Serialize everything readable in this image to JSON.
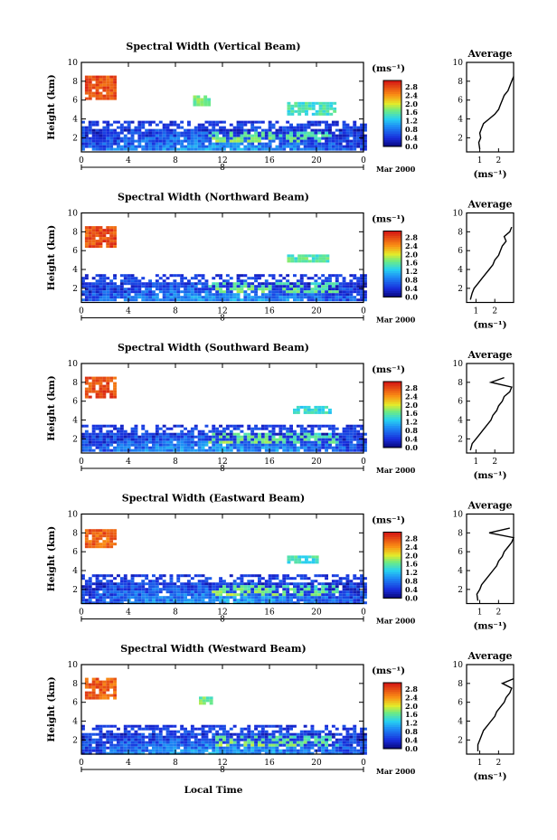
{
  "figure": {
    "xlabel": "Local Time",
    "ylabel": "Height (km)",
    "date_label": "Mar 2000",
    "day_label": "8",
    "cbar_unit": "(ms⁻¹)",
    "avg_title": "Average",
    "avg_xlabel": "(ms⁻¹)"
  },
  "chart_data": [
    {
      "type": "heatmap",
      "title": "Spectral Width (Vertical Beam)",
      "x_ticks": [
        "0",
        "4",
        "8",
        "12",
        "16",
        "20",
        "0"
      ],
      "xlim": [
        0,
        24
      ],
      "y_ticks": [
        "2",
        "4",
        "6",
        "8",
        "10"
      ],
      "ylim": [
        0.5,
        10
      ],
      "colorbar": {
        "ticks": [
          "0.0",
          "0.4",
          "0.8",
          "1.2",
          "1.6",
          "2.0",
          "2.4",
          "2.8"
        ],
        "range": [
          0,
          3.0
        ]
      },
      "approximate_cells": [
        {
          "x_range": [
            0.3,
            3.0
          ],
          "y_range": [
            6.2,
            8.6
          ],
          "value": 2.7
        },
        {
          "x_range": [
            0.0,
            24.0
          ],
          "y_range": [
            0.7,
            3.8
          ],
          "value": 0.6
        },
        {
          "x_range": [
            9.5,
            11.0
          ],
          "y_range": [
            5.6,
            6.5
          ],
          "value": 1.6
        },
        {
          "x_range": [
            17.5,
            21.5
          ],
          "y_range": [
            4.6,
            5.8
          ],
          "value": 1.4
        }
      ],
      "average_profile": {
        "x_ticks": [
          "1",
          "2"
        ],
        "xlim": [
          0.3,
          2.8
        ],
        "y_ticks": [
          "2",
          "4",
          "6",
          "8",
          "10"
        ],
        "height_km": [
          0.8,
          1.5,
          2,
          2.5,
          3,
          3.5,
          4,
          4.5,
          5,
          5.5,
          6,
          6.5,
          7,
          7.5,
          8,
          8.5
        ],
        "width_ms": [
          1.0,
          0.95,
          1.05,
          1.0,
          1.1,
          1.2,
          1.5,
          1.8,
          2.0,
          2.1,
          2.2,
          2.3,
          2.5,
          2.6,
          2.7,
          2.8
        ]
      }
    },
    {
      "type": "heatmap",
      "title": "Spectral Width (Northward Beam)",
      "x_ticks": [
        "0",
        "4",
        "8",
        "12",
        "16",
        "20",
        "0"
      ],
      "xlim": [
        0,
        24
      ],
      "y_ticks": [
        "2",
        "4",
        "6",
        "8",
        "10"
      ],
      "ylim": [
        0.5,
        10
      ],
      "colorbar": {
        "ticks": [
          "0.0",
          "0.4",
          "0.8",
          "1.2",
          "1.6",
          "2.0",
          "2.4",
          "2.8"
        ],
        "range": [
          0,
          3.0
        ]
      },
      "approximate_cells": [
        {
          "x_range": [
            0.3,
            3.0
          ],
          "y_range": [
            6.5,
            8.6
          ],
          "value": 2.7
        },
        {
          "x_range": [
            0.0,
            24.0
          ],
          "y_range": [
            0.7,
            3.5
          ],
          "value": 0.6
        },
        {
          "x_range": [
            17.5,
            21.0
          ],
          "y_range": [
            4.8,
            5.6
          ],
          "value": 1.5
        }
      ],
      "average_profile": {
        "x_ticks": [
          "1",
          "2"
        ],
        "xlim": [
          0.5,
          3.0
        ],
        "y_ticks": [
          "2",
          "4",
          "6",
          "8",
          "10"
        ],
        "height_km": [
          0.8,
          1.5,
          2,
          2.5,
          3,
          3.5,
          4,
          4.5,
          5,
          5.5,
          6,
          6.5,
          7,
          7.5,
          8,
          8.5
        ],
        "width_ms": [
          0.7,
          0.8,
          0.9,
          1.1,
          1.3,
          1.5,
          1.7,
          1.9,
          2.0,
          2.2,
          2.3,
          2.4,
          2.6,
          2.5,
          2.8,
          2.9
        ]
      }
    },
    {
      "type": "heatmap",
      "title": "Spectral Width (Southward Beam)",
      "x_ticks": [
        "0",
        "4",
        "8",
        "12",
        "16",
        "20",
        "0"
      ],
      "xlim": [
        0,
        24
      ],
      "y_ticks": [
        "2",
        "4",
        "6",
        "8",
        "10"
      ],
      "ylim": [
        0.5,
        10
      ],
      "colorbar": {
        "ticks": [
          "0.0",
          "0.4",
          "0.8",
          "1.2",
          "1.6",
          "2.0",
          "2.4",
          "2.8"
        ],
        "range": [
          0,
          3.0
        ]
      },
      "approximate_cells": [
        {
          "x_range": [
            0.3,
            3.0
          ],
          "y_range": [
            6.5,
            8.6
          ],
          "value": 2.7
        },
        {
          "x_range": [
            0.0,
            24.0
          ],
          "y_range": [
            0.7,
            3.5
          ],
          "value": 0.6
        },
        {
          "x_range": [
            18.0,
            21.0
          ],
          "y_range": [
            4.7,
            5.5
          ],
          "value": 1.3
        }
      ],
      "average_profile": {
        "x_ticks": [
          "1",
          "2"
        ],
        "xlim": [
          0.5,
          3.0
        ],
        "y_ticks": [
          "2",
          "4",
          "6",
          "8",
          "10"
        ],
        "height_km": [
          0.8,
          1.5,
          2,
          2.5,
          3,
          3.5,
          4,
          4.5,
          5,
          5.5,
          6,
          6.5,
          7,
          7.5,
          8,
          8.5
        ],
        "width_ms": [
          0.7,
          0.8,
          1.0,
          1.2,
          1.4,
          1.6,
          1.8,
          1.9,
          2.1,
          2.2,
          2.4,
          2.5,
          2.8,
          2.9,
          1.8,
          2.5
        ]
      }
    },
    {
      "type": "heatmap",
      "title": "Spectral Width (Eastward Beam)",
      "x_ticks": [
        "0",
        "4",
        "8",
        "12",
        "16",
        "20",
        "0"
      ],
      "xlim": [
        0,
        24
      ],
      "y_ticks": [
        "2",
        "4",
        "6",
        "8",
        "10"
      ],
      "ylim": [
        0.5,
        10
      ],
      "colorbar": {
        "ticks": [
          "0.0",
          "0.4",
          "0.8",
          "1.2",
          "1.6",
          "2.0",
          "2.4",
          "2.8"
        ],
        "range": [
          0,
          3.0
        ]
      },
      "approximate_cells": [
        {
          "x_range": [
            0.3,
            3.0
          ],
          "y_range": [
            6.5,
            8.4
          ],
          "value": 2.6
        },
        {
          "x_range": [
            0.0,
            24.0
          ],
          "y_range": [
            0.7,
            3.6
          ],
          "value": 0.6
        },
        {
          "x_range": [
            17.5,
            20.0
          ],
          "y_range": [
            4.8,
            5.6
          ],
          "value": 1.4
        }
      ],
      "average_profile": {
        "x_ticks": [
          "1",
          "2"
        ],
        "xlim": [
          0.3,
          2.8
        ],
        "y_ticks": [
          "2",
          "4",
          "6",
          "8",
          "10"
        ],
        "height_km": [
          0.8,
          1.5,
          2,
          2.5,
          3,
          3.5,
          4,
          4.5,
          5,
          5.5,
          6,
          6.5,
          7,
          7.5,
          8,
          8.5
        ],
        "width_ms": [
          0.9,
          0.85,
          1.0,
          1.1,
          1.3,
          1.5,
          1.7,
          1.9,
          2.0,
          2.2,
          2.3,
          2.5,
          2.7,
          2.8,
          1.5,
          2.6
        ]
      }
    },
    {
      "type": "heatmap",
      "title": "Spectral Width (Westward Beam)",
      "x_ticks": [
        "0",
        "4",
        "8",
        "12",
        "16",
        "20",
        "0"
      ],
      "xlim": [
        0,
        24
      ],
      "y_ticks": [
        "2",
        "4",
        "6",
        "8",
        "10"
      ],
      "ylim": [
        0.5,
        10
      ],
      "colorbar": {
        "ticks": [
          "0.0",
          "0.4",
          "0.8",
          "1.2",
          "1.6",
          "2.0",
          "2.4",
          "2.8"
        ],
        "range": [
          0,
          3.0
        ]
      },
      "approximate_cells": [
        {
          "x_range": [
            0.3,
            3.0
          ],
          "y_range": [
            6.5,
            8.6
          ],
          "value": 2.6
        },
        {
          "x_range": [
            0.0,
            24.0
          ],
          "y_range": [
            0.7,
            3.6
          ],
          "value": 0.6
        },
        {
          "x_range": [
            10.0,
            11.0
          ],
          "y_range": [
            6.0,
            6.6
          ],
          "value": 1.6
        }
      ],
      "average_profile": {
        "x_ticks": [
          "1",
          "2"
        ],
        "xlim": [
          0.3,
          2.8
        ],
        "y_ticks": [
          "2",
          "4",
          "6",
          "8",
          "10"
        ],
        "height_km": [
          0.8,
          1.5,
          2,
          2.5,
          3,
          3.5,
          4,
          4.5,
          5,
          5.5,
          6,
          6.5,
          7,
          7.5,
          8,
          8.5
        ],
        "width_ms": [
          0.9,
          0.9,
          1.0,
          1.1,
          1.2,
          1.4,
          1.6,
          1.8,
          1.9,
          2.1,
          2.3,
          2.4,
          2.6,
          2.7,
          2.2,
          2.8
        ]
      }
    }
  ]
}
